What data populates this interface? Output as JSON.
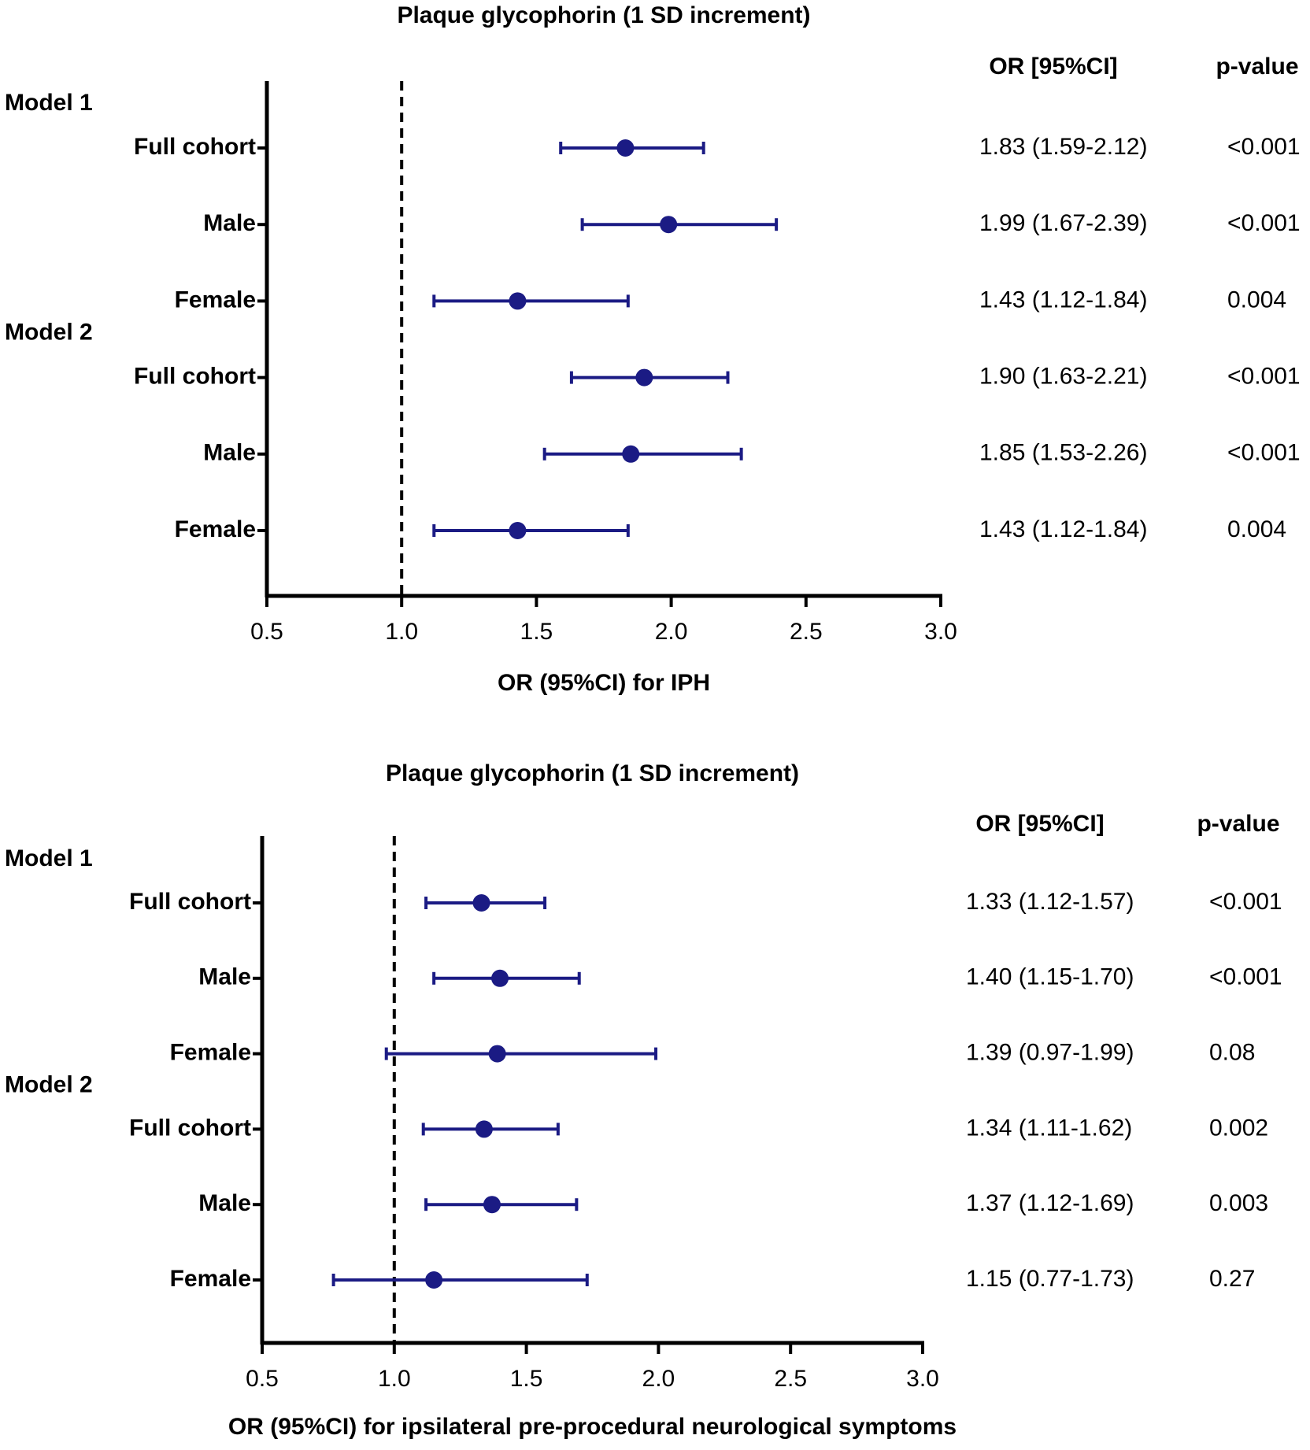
{
  "chart_data": [
    {
      "type": "forest",
      "title": "Plaque glycophorin (1 SD increment)",
      "x_label": "OR (95%CI) for IPH",
      "columns": [
        "OR [95%CI]",
        "p-value"
      ],
      "xlim": [
        0.5,
        3.0
      ],
      "xticks": [
        {
          "value": 0.5,
          "label": "0.5"
        },
        {
          "value": 1,
          "label": "1.0"
        },
        {
          "value": 1.5,
          "label": "1.5"
        },
        {
          "value": 2,
          "label": "2.0"
        },
        {
          "value": 2.5,
          "label": "2.5"
        },
        {
          "value": 3,
          "label": "3.0"
        }
      ],
      "reference": 1,
      "series": [
        {
          "name": "Model 1",
          "color": "#1b1b84",
          "categories": [
            "Full cohort",
            "Male",
            "Female"
          ],
          "values": [
            1.83,
            1.99,
            1.43
          ],
          "lower": [
            1.59,
            1.67,
            1.12
          ],
          "upper": [
            2.12,
            2.39,
            1.84
          ],
          "value_labels": [
            "1.83 (1.59-2.12)",
            "1.99 (1.67-2.39)",
            "1.43 (1.12-1.84)"
          ],
          "p_values": [
            "<0.001",
            "<0.001",
            "0.004"
          ]
        },
        {
          "name": "Model 2",
          "color": "#1b1b84",
          "categories": [
            "Full cohort",
            "Male",
            "Female"
          ],
          "values": [
            1.9,
            1.85,
            1.43
          ],
          "lower": [
            1.63,
            1.53,
            1.12
          ],
          "upper": [
            2.21,
            2.26,
            1.84
          ],
          "value_labels": [
            "1.90 (1.63-2.21)",
            "1.85 (1.53-2.26)",
            "1.43 (1.12-1.84)"
          ],
          "p_values": [
            "<0.001",
            "<0.001",
            "0.004"
          ]
        }
      ]
    },
    {
      "type": "forest",
      "title": "Plaque glycophorin (1 SD increment)",
      "x_label": "OR (95%CI) for ipsilateral pre-procedural neurological symptoms",
      "columns": [
        "OR [95%CI]",
        "p-value"
      ],
      "xlim": [
        0.5,
        3.0
      ],
      "xticks": [
        {
          "value": 0.5,
          "label": "0.5"
        },
        {
          "value": 1,
          "label": "1.0"
        },
        {
          "value": 1.5,
          "label": "1.5"
        },
        {
          "value": 2,
          "label": "2.0"
        },
        {
          "value": 2.5,
          "label": "2.5"
        },
        {
          "value": 3,
          "label": "3.0"
        }
      ],
      "reference": 1,
      "series": [
        {
          "name": "Model 1",
          "color": "#1b1b84",
          "categories": [
            "Full cohort",
            "Male",
            "Female"
          ],
          "values": [
            1.33,
            1.4,
            1.39
          ],
          "lower": [
            1.12,
            1.15,
            0.97
          ],
          "upper": [
            1.57,
            1.7,
            1.99
          ],
          "value_labels": [
            "1.33 (1.12-1.57)",
            "1.40 (1.15-1.70)",
            "1.39 (0.97-1.99)"
          ],
          "p_values": [
            "<0.001",
            "<0.001",
            "0.08"
          ]
        },
        {
          "name": "Model 2",
          "color": "#1b1b84",
          "categories": [
            "Full cohort",
            "Male",
            "Female"
          ],
          "values": [
            1.34,
            1.37,
            1.15
          ],
          "lower": [
            1.11,
            1.12,
            0.77
          ],
          "upper": [
            1.62,
            1.69,
            1.73
          ],
          "value_labels": [
            "1.34 (1.11-1.62)",
            "1.37 (1.12-1.69)",
            "1.15 (0.77-1.73)"
          ],
          "p_values": [
            "0.002",
            "0.003",
            "0.27"
          ]
        }
      ]
    }
  ]
}
